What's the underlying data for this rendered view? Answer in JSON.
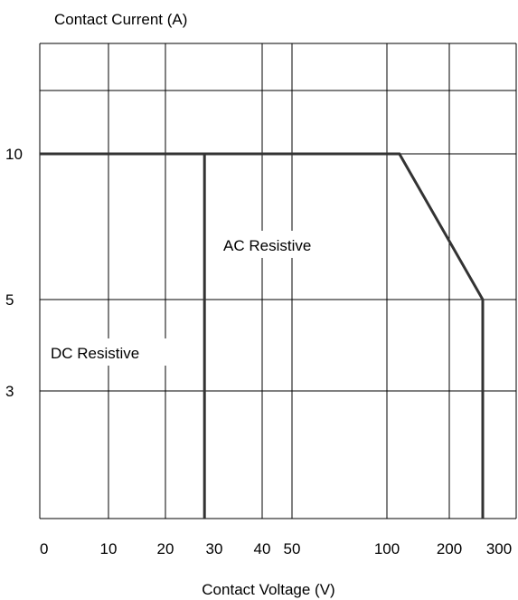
{
  "chart_data": {
    "type": "line",
    "title": "",
    "ylabel": "Contact Current (A)",
    "xlabel": "Contact Voltage (V)",
    "grid": true,
    "x_ticks": [
      "0",
      "10",
      "20",
      "30",
      "40",
      "50",
      "100",
      "200",
      "300"
    ],
    "y_ticks": [
      "10",
      "5",
      "3"
    ],
    "annotations": [
      "AC Resistive",
      "DC Resistive"
    ],
    "series": [
      {
        "name": "AC Resistive",
        "points": [
          {
            "x": 0,
            "y": 10
          },
          {
            "x": 120,
            "y": 10
          },
          {
            "x": 250,
            "y": 5
          },
          {
            "x": 250,
            "y": 0
          }
        ]
      },
      {
        "name": "DC Resistive",
        "points": [
          {
            "x": 0,
            "y": 10
          },
          {
            "x": 28,
            "y": 10
          },
          {
            "x": 28,
            "y": 0
          }
        ]
      }
    ],
    "colors": {
      "line": "#000000",
      "grid": "#000000",
      "curve": "#333333"
    }
  }
}
